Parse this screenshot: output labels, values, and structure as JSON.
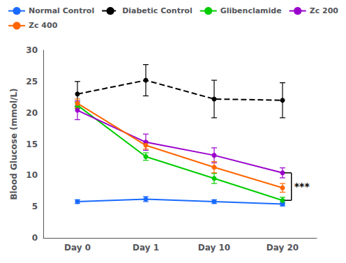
{
  "chart_data": {
    "type": "line",
    "categories": [
      "Day 0",
      "Day 1",
      "Day 10",
      "Day 20"
    ],
    "series": [
      {
        "name": "Normal Control",
        "color": "#1a6aff",
        "line_style": "solid",
        "marker": "circle",
        "values": [
          5.8,
          6.2,
          5.8,
          5.4
        ],
        "errors": [
          0.3,
          0.4,
          0.3,
          0.3
        ]
      },
      {
        "name": "Diabetic Control",
        "color": "#000000",
        "line_style": "dashed",
        "marker": "circle",
        "values": [
          23.0,
          25.2,
          22.2,
          22.0
        ],
        "errors": [
          2.0,
          2.5,
          3.0,
          2.8
        ]
      },
      {
        "name": "Glibenclamide",
        "color": "#00cc00",
        "line_style": "solid",
        "marker": "circle",
        "values": [
          21.2,
          13.0,
          9.5,
          6.0
        ],
        "errors": [
          0.5,
          0.6,
          0.8,
          0.5
        ]
      },
      {
        "name": "Zc 200",
        "color": "#9900cc",
        "line_style": "solid",
        "marker": "circle",
        "values": [
          20.4,
          15.3,
          13.2,
          10.4
        ],
        "errors": [
          1.5,
          1.3,
          1.2,
          0.8
        ]
      },
      {
        "name": "Zc 400",
        "color": "#ff6600",
        "line_style": "solid",
        "marker": "circle",
        "values": [
          21.5,
          14.8,
          11.3,
          8.0
        ],
        "errors": [
          0.7,
          0.6,
          0.9,
          0.7
        ]
      }
    ],
    "ylabel": "Blood Glucose (mmol/L)",
    "ylim": [
      0,
      30
    ],
    "yticks": [
      0,
      5,
      10,
      15,
      20,
      25,
      30
    ],
    "annotations": [
      {
        "text": "***",
        "category": "Day 20",
        "y": [
          6.0,
          10.4
        ]
      }
    ],
    "grid": false,
    "legend": "top"
  }
}
